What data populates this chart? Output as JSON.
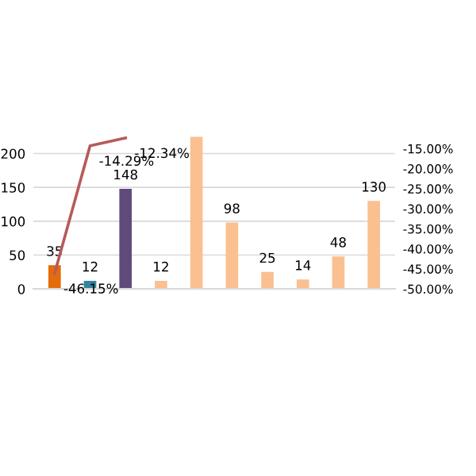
{
  "chart_data": {
    "type": "bar",
    "categories": [
      null,
      null,
      null,
      null,
      null,
      null,
      null,
      null,
      null,
      null
    ],
    "series": [
      {
        "colors": [
          "#e46c0a",
          "#31859c",
          "#604a7b",
          "#fac090",
          "#fac090",
          "#fac090",
          "#fac090",
          "#fac090",
          "#fac090",
          "#fac090"
        ],
        "values": [
          35,
          12,
          148,
          12,
          225,
          98,
          25,
          14,
          48,
          130
        ],
        "value_labels": [
          "35",
          "12",
          "148",
          "12",
          null,
          "98",
          "25",
          "14",
          "48",
          "130"
        ]
      },
      {
        "type": "line",
        "axis": "y2",
        "color": "#b65b5b",
        "values": [
          -46.15,
          -14.29,
          -12.34,
          null,
          null,
          null,
          null,
          null,
          null,
          null
        ],
        "value_labels": [
          "-46.15%",
          "-14.29%",
          "-12.34%",
          null,
          null,
          null,
          null,
          null,
          null,
          null
        ]
      }
    ],
    "ylim": [
      0,
      225
    ],
    "yticks": [
      0,
      50,
      100,
      150,
      200
    ],
    "y2lim": [
      -50,
      -12
    ],
    "y2ticks": [
      {
        "value": -15,
        "label": "-15.00%"
      },
      {
        "value": -20,
        "label": "-20.00%"
      },
      {
        "value": -25,
        "label": "-25.00%"
      },
      {
        "value": -30,
        "label": "-30.00%"
      },
      {
        "value": -35,
        "label": "-35.00%"
      },
      {
        "value": -40,
        "label": "-40.00%"
      },
      {
        "value": -45,
        "label": "-45.00%"
      },
      {
        "value": -50,
        "label": "-50.00%"
      }
    ],
    "grid": "y",
    "legend": false,
    "marker": "none"
  }
}
